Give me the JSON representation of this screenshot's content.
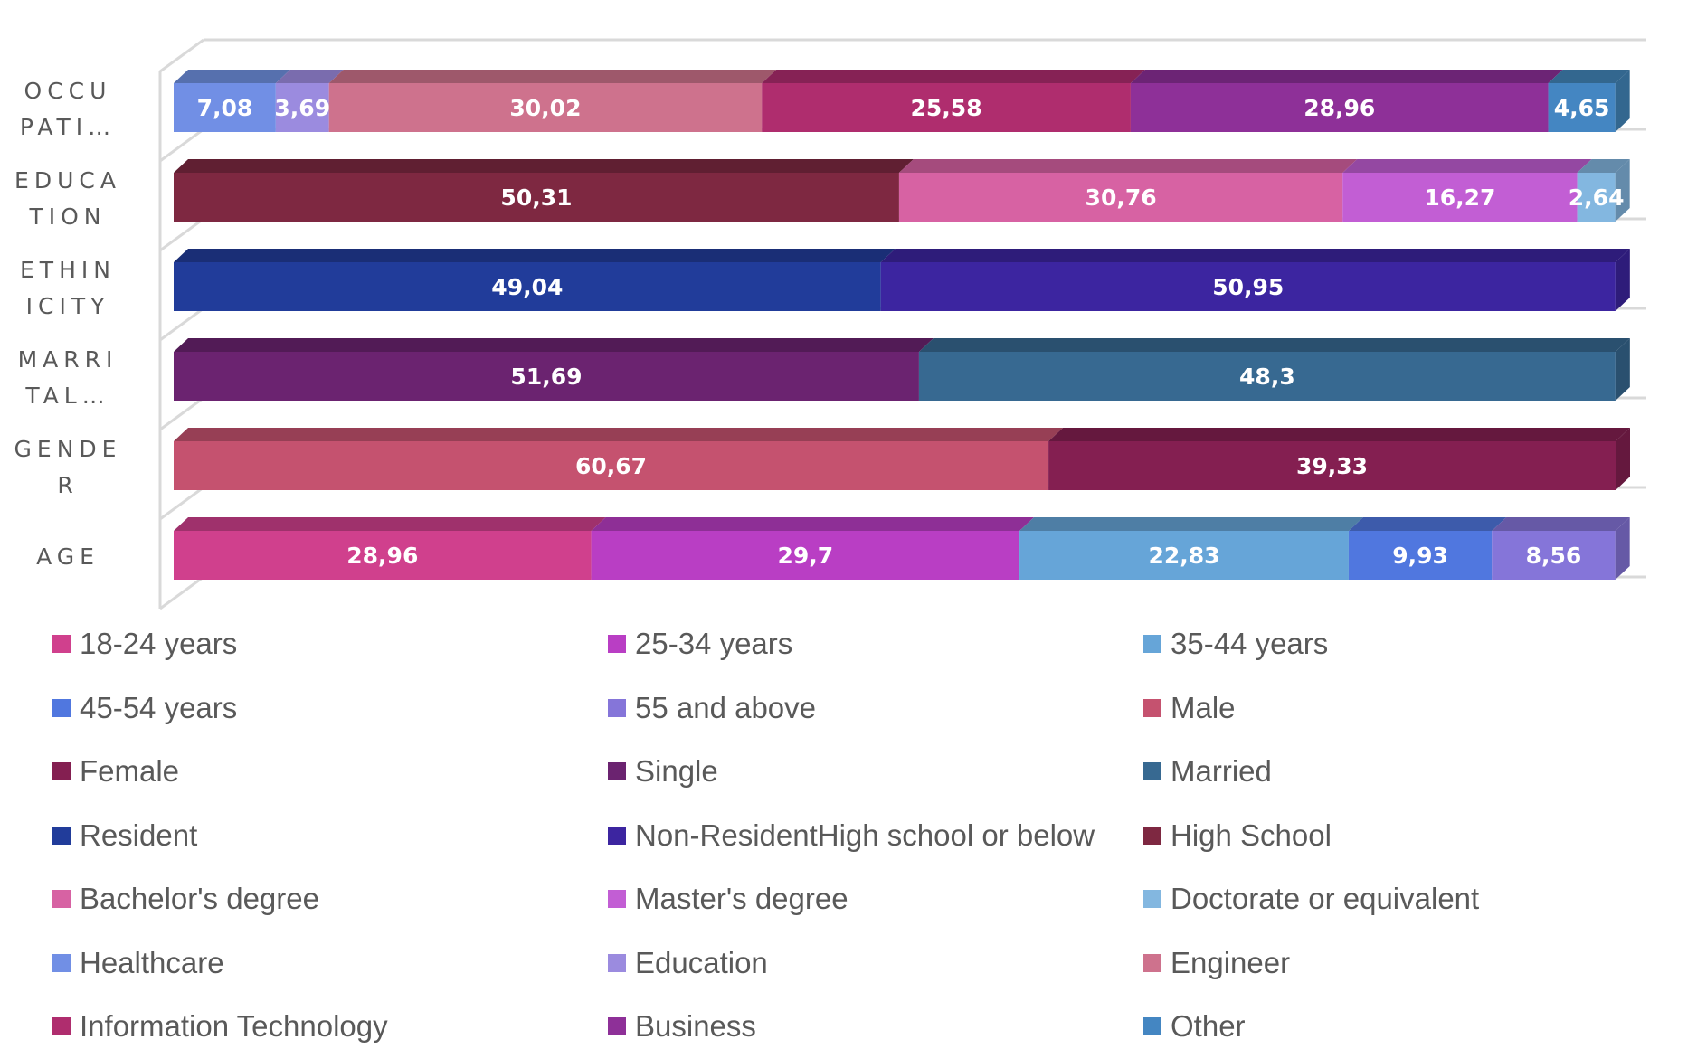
{
  "chart_data": {
    "type": "bar",
    "orientation": "horizontal",
    "stacked": true,
    "style": "3d-stacked-100",
    "title": "",
    "xlabel": "",
    "ylabel": "",
    "xlim": [
      0,
      100
    ],
    "grid": true,
    "legend_position": "bottom",
    "categories": [
      "OCCUPATI…",
      "EDUCATION",
      "ETHINICITY",
      "MARRITAL…",
      "GENDER",
      "AGE"
    ],
    "category_display": [
      "OCCU\nPATI…",
      "EDUCA\nTION",
      "ETHIN\nICITY",
      "MARRI\nTAL…",
      "GENDE\nR",
      "AGE"
    ],
    "rows": [
      {
        "category": "OCCUPATI…",
        "segments": [
          {
            "name": "Healthcare",
            "value": 7.08,
            "label": "7,08",
            "color": "#718FE5",
            "top": "#5670AE"
          },
          {
            "name": "Education",
            "value": 3.69,
            "label": "3,69",
            "color": "#9B8BDF",
            "top": "#7A6CAE"
          },
          {
            "name": "Engineer",
            "value": 30.02,
            "label": "30,02",
            "color": "#CE728D",
            "top": "#9E586B"
          },
          {
            "name": "Information Technology",
            "value": 25.58,
            "label": "25,58",
            "color": "#AF2D6E",
            "top": "#862255"
          },
          {
            "name": "Business",
            "value": 28.96,
            "label": "28,96",
            "color": "#8E3098",
            "top": "#6C2475"
          },
          {
            "name": "Other",
            "value": 4.65,
            "label": "4,65",
            "color": "#4486C2",
            "top": "#33678F"
          }
        ]
      },
      {
        "category": "EDUCATION",
        "segments": [
          {
            "name": "High School",
            "value": 50.31,
            "label": "50,31",
            "color": "#7E2841",
            "top": "#601F32"
          },
          {
            "name": "Bachelor's degree",
            "value": 30.76,
            "label": "30,76",
            "color": "#D762A3",
            "top": "#A54B7D"
          },
          {
            "name": "Master's degree",
            "value": 16.27,
            "label": "16,27",
            "color": "#C25ED4",
            "top": "#9448A2"
          },
          {
            "name": "Doctorate or equivalent",
            "value": 2.64,
            "label": "2,64",
            "color": "#83B7E0",
            "top": "#648BAB"
          }
        ]
      },
      {
        "category": "ETHINICITY",
        "segments": [
          {
            "name": "Resident",
            "value": 49.04,
            "label": "49,04",
            "color": "#213C9A",
            "top": "#1A2E76"
          },
          {
            "name": "Non-ResidentHigh school or below",
            "value": 50.95,
            "label": "50,95",
            "color": "#3C25A0",
            "top": "#2E1C7A"
          }
        ]
      },
      {
        "category": "MARRITAL…",
        "segments": [
          {
            "name": "Single",
            "value": 51.69,
            "label": "51,69",
            "color": "#6B2370",
            "top": "#521B56"
          },
          {
            "name": "Married",
            "value": 48.3,
            "label": "48,3",
            "color": "#376991",
            "top": "#2A506F"
          }
        ]
      },
      {
        "category": "GENDER",
        "segments": [
          {
            "name": "Male",
            "value": 60.67,
            "label": "60,67",
            "color": "#C5526F",
            "top": "#973F55"
          },
          {
            "name": "Female",
            "value": 39.33,
            "label": "39,33",
            "color": "#841F51",
            "top": "#65183E"
          }
        ]
      },
      {
        "category": "AGE",
        "segments": [
          {
            "name": "18-24 years",
            "value": 28.96,
            "label": "28,96",
            "color": "#D0408D",
            "top": "#9F316C"
          },
          {
            "name": "25-34 years",
            "value": 29.7,
            "label": "29,7",
            "color": "#B93EC4",
            "top": "#8E2F96"
          },
          {
            "name": "35-44 years",
            "value": 22.83,
            "label": "22,83",
            "color": "#66A5D8",
            "top": "#4E7EA5"
          },
          {
            "name": "45-54 years",
            "value": 9.93,
            "label": "9,93",
            "color": "#5077DF",
            "top": "#3D5BAB"
          },
          {
            "name": "55 and above",
            "value": 8.56,
            "label": "8,56",
            "color": "#8575D9",
            "top": "#6659A6"
          }
        ]
      }
    ],
    "legend": [
      {
        "label": "18-24 years",
        "color": "#D0408D"
      },
      {
        "label": "25-34 years",
        "color": "#B93EC4"
      },
      {
        "label": "35-44 years",
        "color": "#66A5D8"
      },
      {
        "label": "45-54 years",
        "color": "#5077DF"
      },
      {
        "label": "55 and above",
        "color": "#8575D9"
      },
      {
        "label": "Male",
        "color": "#C5526F"
      },
      {
        "label": "Female",
        "color": "#841F51"
      },
      {
        "label": "Single",
        "color": "#6B2370"
      },
      {
        "label": "Married",
        "color": "#376991"
      },
      {
        "label": "Resident",
        "color": "#213C9A"
      },
      {
        "label": "Non-ResidentHigh school or below",
        "color": "#3C25A0"
      },
      {
        "label": "High School",
        "color": "#7E2841"
      },
      {
        "label": "Bachelor's degree",
        "color": "#D762A3"
      },
      {
        "label": "Master's degree",
        "color": "#C25ED4"
      },
      {
        "label": "Doctorate or equivalent",
        "color": "#83B7E0"
      },
      {
        "label": "Healthcare",
        "color": "#718FE5"
      },
      {
        "label": "Education",
        "color": "#9B8BDF"
      },
      {
        "label": "Engineer",
        "color": "#CE728D"
      },
      {
        "label": "Information Technology",
        "color": "#AF2D6E"
      },
      {
        "label": "Business",
        "color": "#8E3098"
      },
      {
        "label": "Other",
        "color": "#4486C2"
      }
    ]
  }
}
